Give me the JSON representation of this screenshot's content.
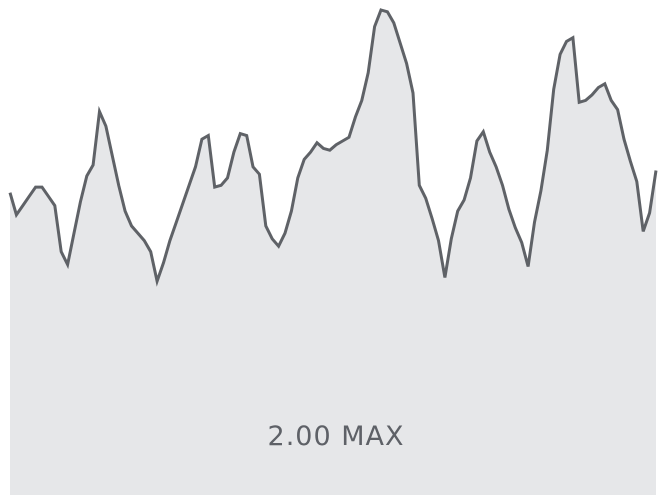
{
  "max_label": "2.00 MAX",
  "colors": {
    "line": "#5f6267",
    "fill": "#e6e7e9",
    "label": "#5e6167"
  },
  "chart_data": {
    "type": "area",
    "title": "",
    "xlabel": "",
    "ylabel": "",
    "ylim": [
      0,
      2.0
    ],
    "grid": false,
    "legend": "none",
    "series": [
      {
        "values": [
          1.01,
          0.89,
          0.94,
          0.99,
          1.04,
          1.04,
          0.99,
          0.94,
          0.69,
          0.62,
          0.79,
          0.96,
          1.1,
          1.16,
          1.45,
          1.37,
          1.21,
          1.05,
          0.91,
          0.83,
          0.79,
          0.75,
          0.69,
          0.53,
          0.63,
          0.75,
          0.85,
          0.95,
          1.05,
          1.15,
          1.3,
          1.32,
          1.04,
          1.05,
          1.09,
          1.23,
          1.33,
          1.32,
          1.15,
          1.11,
          0.83,
          0.76,
          0.72,
          0.79,
          0.91,
          1.09,
          1.19,
          1.23,
          1.28,
          1.25,
          1.24,
          1.27,
          1.29,
          1.31,
          1.42,
          1.51,
          1.66,
          1.91,
          2.0,
          1.99,
          1.93,
          1.82,
          1.71,
          1.55,
          1.05,
          0.98,
          0.87,
          0.75,
          0.55,
          0.76,
          0.91,
          0.97,
          1.09,
          1.29,
          1.34,
          1.23,
          1.15,
          1.05,
          0.92,
          0.82,
          0.74,
          0.61,
          0.85,
          1.02,
          1.24,
          1.57,
          1.76,
          1.83,
          1.85,
          1.5,
          1.51,
          1.54,
          1.58,
          1.6,
          1.51,
          1.46,
          1.3,
          1.18,
          1.07,
          0.8,
          0.9,
          1.13
        ]
      }
    ]
  }
}
